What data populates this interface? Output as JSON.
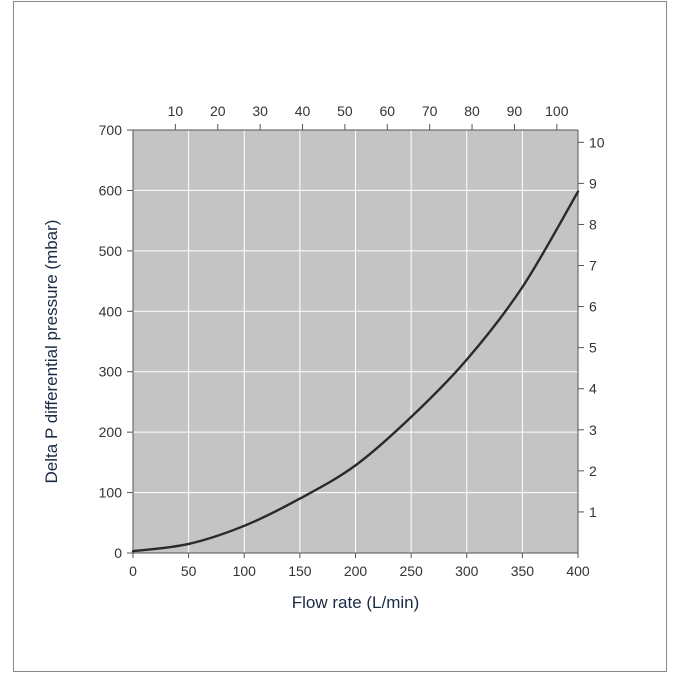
{
  "chart_data": {
    "type": "line",
    "title": "",
    "xlabel": "Flow rate (L/min)",
    "ylabel": "Delta P differential pressure (mbar)",
    "xlim": [
      0,
      400
    ],
    "ylim": [
      0,
      700
    ],
    "x_ticks": [
      0,
      50,
      100,
      150,
      200,
      250,
      300,
      350,
      400
    ],
    "y_ticks": [
      0,
      100,
      200,
      300,
      400,
      500,
      600,
      700
    ],
    "top_axis_ticks": [
      10,
      20,
      30,
      40,
      50,
      60,
      70,
      80,
      90,
      100
    ],
    "right_axis_ticks": [
      1,
      2,
      3,
      4,
      5,
      6,
      7,
      8,
      9,
      10
    ],
    "grid": true,
    "plot_background": "#c4c4c4",
    "grid_color": "#ffffff",
    "series": [
      {
        "color": "#2a2a2a",
        "x": [
          0,
          50,
          100,
          150,
          200,
          250,
          300,
          350,
          400
        ],
        "y": [
          3,
          15,
          45,
          90,
          145,
          225,
          320,
          440,
          598
        ]
      }
    ]
  }
}
